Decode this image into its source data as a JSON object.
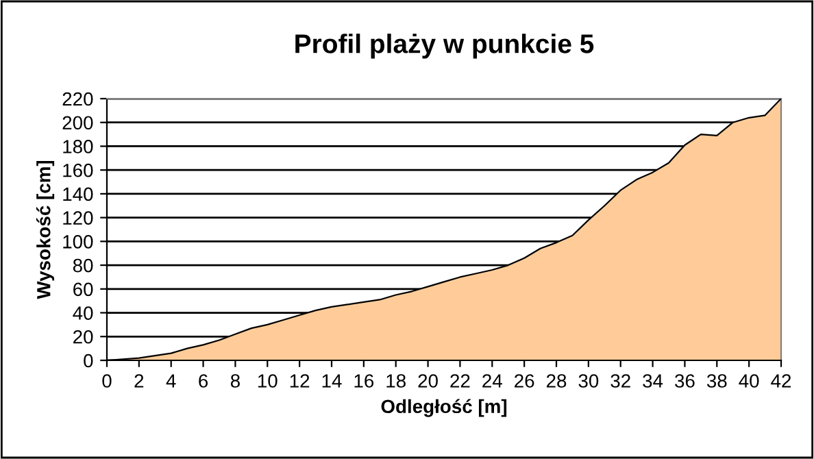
{
  "chart_data": {
    "type": "area",
    "title": "Profil plaży w punkcie 5",
    "xlabel": "Odległość [m]",
    "ylabel": "Wysokość [cm]",
    "x": [
      0,
      1,
      2,
      3,
      4,
      5,
      6,
      7,
      8,
      9,
      10,
      11,
      12,
      13,
      14,
      15,
      16,
      17,
      18,
      19,
      20,
      21,
      22,
      23,
      24,
      25,
      26,
      27,
      28,
      29,
      30,
      31,
      32,
      33,
      34,
      35,
      36,
      37,
      38,
      39,
      40,
      41,
      42
    ],
    "series": [
      {
        "color": "#ffcc99",
        "values": [
          0,
          1,
          2,
          4,
          6,
          10,
          13,
          17,
          22,
          27,
          30,
          34,
          38,
          42,
          45,
          47,
          49,
          51,
          55,
          58,
          62,
          66,
          70,
          73,
          76,
          80,
          86,
          94,
          99,
          105,
          118,
          130,
          143,
          152,
          158,
          166,
          181,
          190,
          189,
          200,
          204,
          206,
          220
        ]
      }
    ],
    "xlim": [
      0,
      42
    ],
    "xticks": [
      0,
      2,
      4,
      6,
      8,
      10,
      12,
      14,
      16,
      18,
      20,
      22,
      24,
      26,
      28,
      30,
      32,
      34,
      36,
      38,
      40,
      42
    ],
    "ylim": [
      0,
      220
    ],
    "yticks": [
      0,
      20,
      40,
      60,
      80,
      100,
      120,
      140,
      160,
      180,
      200,
      220
    ],
    "grid": "y",
    "legend": false
  }
}
